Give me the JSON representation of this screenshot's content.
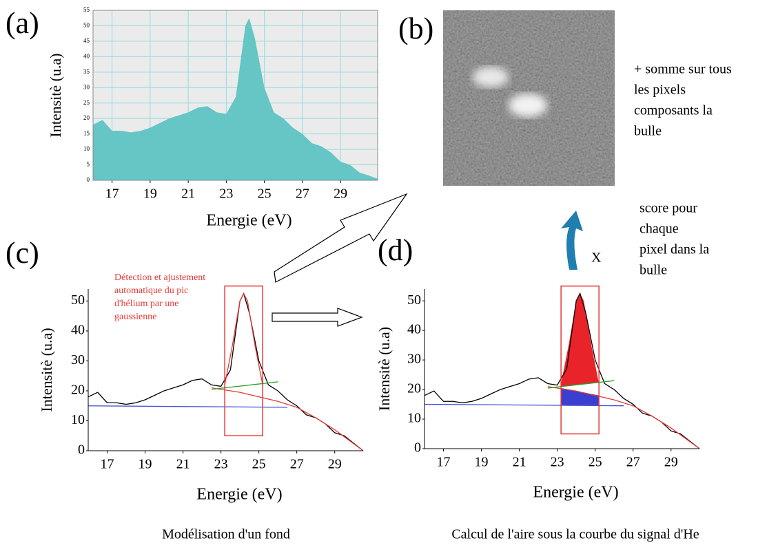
{
  "panels": [
    "(a)",
    "(b)",
    "(c)",
    "(d)"
  ],
  "notes": {
    "sum": [
      "+ somme sur tous",
      "les pixels",
      "composants la",
      "bulle"
    ],
    "score": [
      "score pour",
      "chaque",
      "pixel dans la",
      "bulle"
    ],
    "times": "X",
    "detection": [
      "Détection et ajustement",
      "automatique du pic",
      "d'hélium par une",
      "gaussienne"
    ]
  },
  "captions": [
    "Modélisation d'un fond",
    "Calcul de l'aire sous la courbe du signal d'He"
  ],
  "chart_data": [
    {
      "type": "area",
      "xlabel": "Energie (eV)",
      "ylabel": "Intensitè (u.a)",
      "xlim": [
        16,
        30.95
      ],
      "xticks": [
        17,
        19,
        21,
        23,
        25,
        27,
        29
      ],
      "ylim": [
        0,
        55
      ],
      "yticks": [
        0,
        5,
        10,
        15,
        20,
        25,
        30,
        35,
        40,
        45,
        50,
        55
      ],
      "grid": true,
      "grid_color": "#8fdde3",
      "background": "#ebebeb",
      "frame": true,
      "series": [
        {
          "style": "area",
          "color": "#66c5c5",
          "x": [
            16,
            16.5,
            17,
            17.5,
            18,
            18.5,
            19,
            19.5,
            20,
            20.5,
            21,
            21.5,
            22,
            22.5,
            23,
            23.5,
            24,
            24.2,
            24.5,
            25,
            25.5,
            26,
            26.5,
            27,
            27.5,
            28,
            28.5,
            29,
            29.5,
            30,
            30.5,
            30.95
          ],
          "values": [
            18,
            19.5,
            16,
            16,
            15.5,
            16,
            17,
            18.5,
            20,
            21,
            22,
            23.5,
            24,
            22,
            21.5,
            27,
            50,
            52.5,
            46,
            30,
            22,
            20,
            17,
            15,
            12,
            11,
            9,
            6,
            5,
            2.5,
            1.5,
            0.5
          ]
        }
      ]
    },
    {
      "type": "line",
      "xlabel": "Energie (eV)",
      "ylabel": "Intensitè (u.a)",
      "xlim": [
        16,
        30.5
      ],
      "xticks": [
        17,
        19,
        21,
        23,
        25,
        27,
        29
      ],
      "ylim": [
        0,
        54
      ],
      "yticks": [
        0,
        10,
        20,
        30,
        40,
        50
      ],
      "grid": false,
      "frame": false,
      "box": {
        "x": [
          23.2,
          25.2
        ],
        "y": [
          5,
          55
        ],
        "color": "#e53935"
      },
      "series": [
        {
          "style": "line",
          "color": "#000000",
          "x": [
            16,
            16.5,
            17,
            17.5,
            18,
            18.5,
            19,
            19.5,
            20,
            20.5,
            21,
            21.5,
            22,
            22.5,
            23,
            23.5,
            24,
            24.2,
            24.5,
            25,
            25.5,
            26,
            26.5,
            27,
            27.5,
            28,
            28.5,
            29,
            29.5,
            30,
            30.5
          ],
          "values": [
            18,
            19.5,
            16,
            16,
            15.5,
            16,
            17,
            18.5,
            20,
            21,
            22,
            23.5,
            24,
            22,
            21.5,
            27,
            50,
            52.5,
            46,
            30,
            22,
            20,
            17,
            15,
            12,
            11,
            9,
            6,
            5,
            2.5,
            0
          ]
        },
        {
          "style": "line",
          "color": "#3f4fd0",
          "x": [
            16,
            26.5
          ],
          "values": [
            15,
            14.5
          ]
        },
        {
          "style": "line",
          "color": "#e53935",
          "x": [
            22.5,
            24,
            26,
            27,
            28,
            29,
            30.5
          ],
          "values": [
            21,
            19.5,
            16.5,
            14.5,
            11,
            7,
            0
          ]
        },
        {
          "style": "line",
          "color": "#2aa02a",
          "x": [
            22.5,
            26
          ],
          "values": [
            20.5,
            23
          ]
        },
        {
          "style": "line",
          "color": "#e53935",
          "x": [
            23.2,
            23.6,
            24,
            24.2,
            24.4,
            24.8,
            25.2
          ],
          "values": [
            22,
            35,
            50,
            52.5,
            50,
            35,
            22
          ]
        }
      ]
    },
    {
      "type": "line",
      "xlabel": "Energie (eV)",
      "ylabel": "Intensitè (u.a)",
      "xlim": [
        16,
        30.5
      ],
      "xticks": [
        17,
        19,
        21,
        23,
        25,
        27,
        29
      ],
      "ylim": [
        0,
        54
      ],
      "yticks": [
        0,
        10,
        20,
        30,
        40,
        50
      ],
      "grid": false,
      "frame": false,
      "box": {
        "x": [
          23.2,
          25.2
        ],
        "y": [
          5,
          55
        ],
        "color": "#e53935"
      },
      "series": [
        {
          "style": "band",
          "color": "#e8242a",
          "x": [
            23.2,
            23.6,
            24,
            24.2,
            24.4,
            24.8,
            25.2
          ],
          "values": [
            22,
            35,
            50,
            52.5,
            50,
            35,
            22
          ],
          "lower": [
            21,
            21.3,
            21.6,
            21.7,
            21.9,
            22.2,
            22.5
          ]
        },
        {
          "style": "band",
          "color": "#3b3fd0",
          "x": [
            23.2,
            25.2
          ],
          "values": [
            20.5,
            18
          ],
          "lower": [
            14.8,
            14.7
          ]
        },
        {
          "style": "line",
          "color": "#000000",
          "x": [
            16,
            16.5,
            17,
            17.5,
            18,
            18.5,
            19,
            19.5,
            20,
            20.5,
            21,
            21.5,
            22,
            22.5,
            23,
            23.5,
            24,
            24.2,
            24.5,
            25,
            25.5,
            26,
            26.5,
            27,
            27.5,
            28,
            28.5,
            29,
            29.5,
            30,
            30.5
          ],
          "values": [
            18,
            19.5,
            16,
            16,
            15.5,
            16,
            17,
            18.5,
            20,
            21,
            22,
            23.5,
            24,
            22,
            21.5,
            27,
            50,
            52.5,
            46,
            30,
            22,
            20,
            17,
            15,
            12,
            11,
            9,
            6,
            5,
            2.5,
            0
          ]
        },
        {
          "style": "line",
          "color": "#3f4fd0",
          "x": [
            16,
            26.5
          ],
          "values": [
            15,
            14.5
          ]
        },
        {
          "style": "line",
          "color": "#e53935",
          "x": [
            22.5,
            24,
            26,
            27,
            28,
            29,
            30.5
          ],
          "values": [
            21,
            19.5,
            16.5,
            14.5,
            11,
            7,
            0
          ]
        },
        {
          "style": "line",
          "color": "#2aa02a",
          "x": [
            22.5,
            26
          ],
          "values": [
            20.5,
            23
          ]
        }
      ]
    }
  ]
}
